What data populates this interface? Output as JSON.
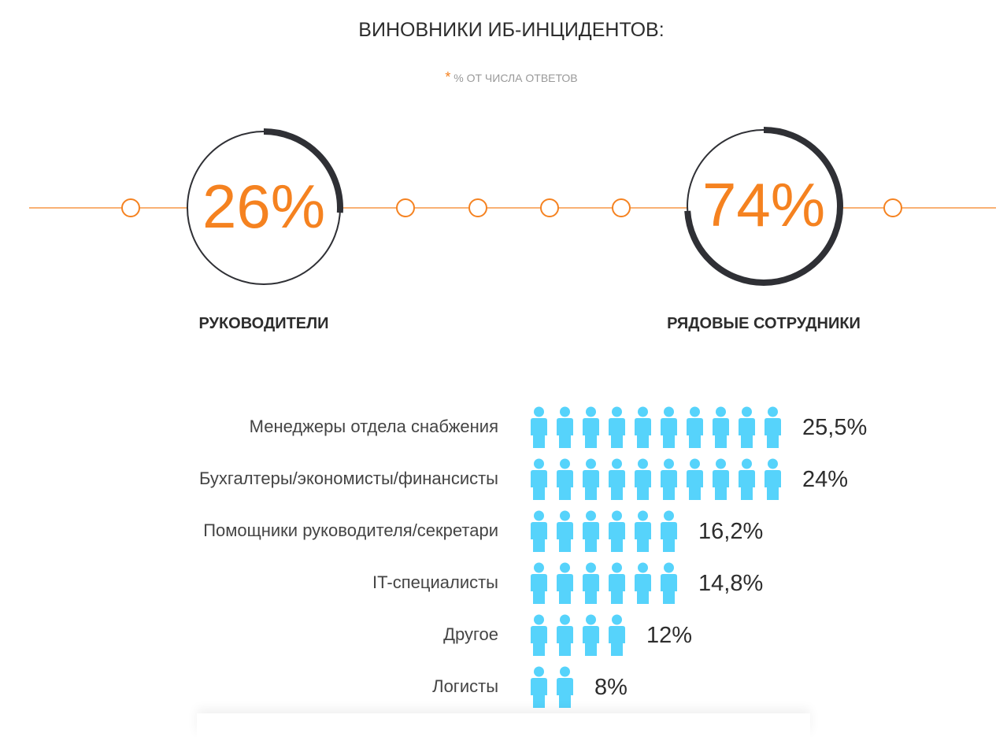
{
  "title": "ВИНОВНИКИ ИБ-ИНЦИДЕНТОВ:",
  "note": {
    "star": "*",
    "text": "% ОТ ЧИСЛА ОТВЕТОВ"
  },
  "colors": {
    "accent": "#f58220",
    "ring": "#2f3035",
    "person": "#56d3fb"
  },
  "chart_data": [
    {
      "type": "pie",
      "title": "ВИНОВНИКИ ИБ-ИНЦИДЕНТОВ:",
      "categories": [
        "РУКОВОДИТЕЛИ",
        "РЯДОВЫЕ СОТРУДНИКИ"
      ],
      "values": [
        26,
        74
      ],
      "value_labels": [
        "26%",
        "74%"
      ]
    },
    {
      "type": "bar",
      "categories": [
        "Менеджеры отдела снабжения",
        "Бухгалтеры/экономисты/финансисты",
        "Помощники руководителя/секретари",
        "IT-специалисты",
        "Другое",
        "Логисты"
      ],
      "values": [
        25.5,
        24,
        16.2,
        14.8,
        12,
        8
      ],
      "value_labels": [
        "25,5%",
        "24%",
        "16,2%",
        "14,8%",
        "12%",
        "8%"
      ],
      "icon_counts": [
        10,
        10,
        6,
        6,
        4,
        2
      ]
    }
  ]
}
